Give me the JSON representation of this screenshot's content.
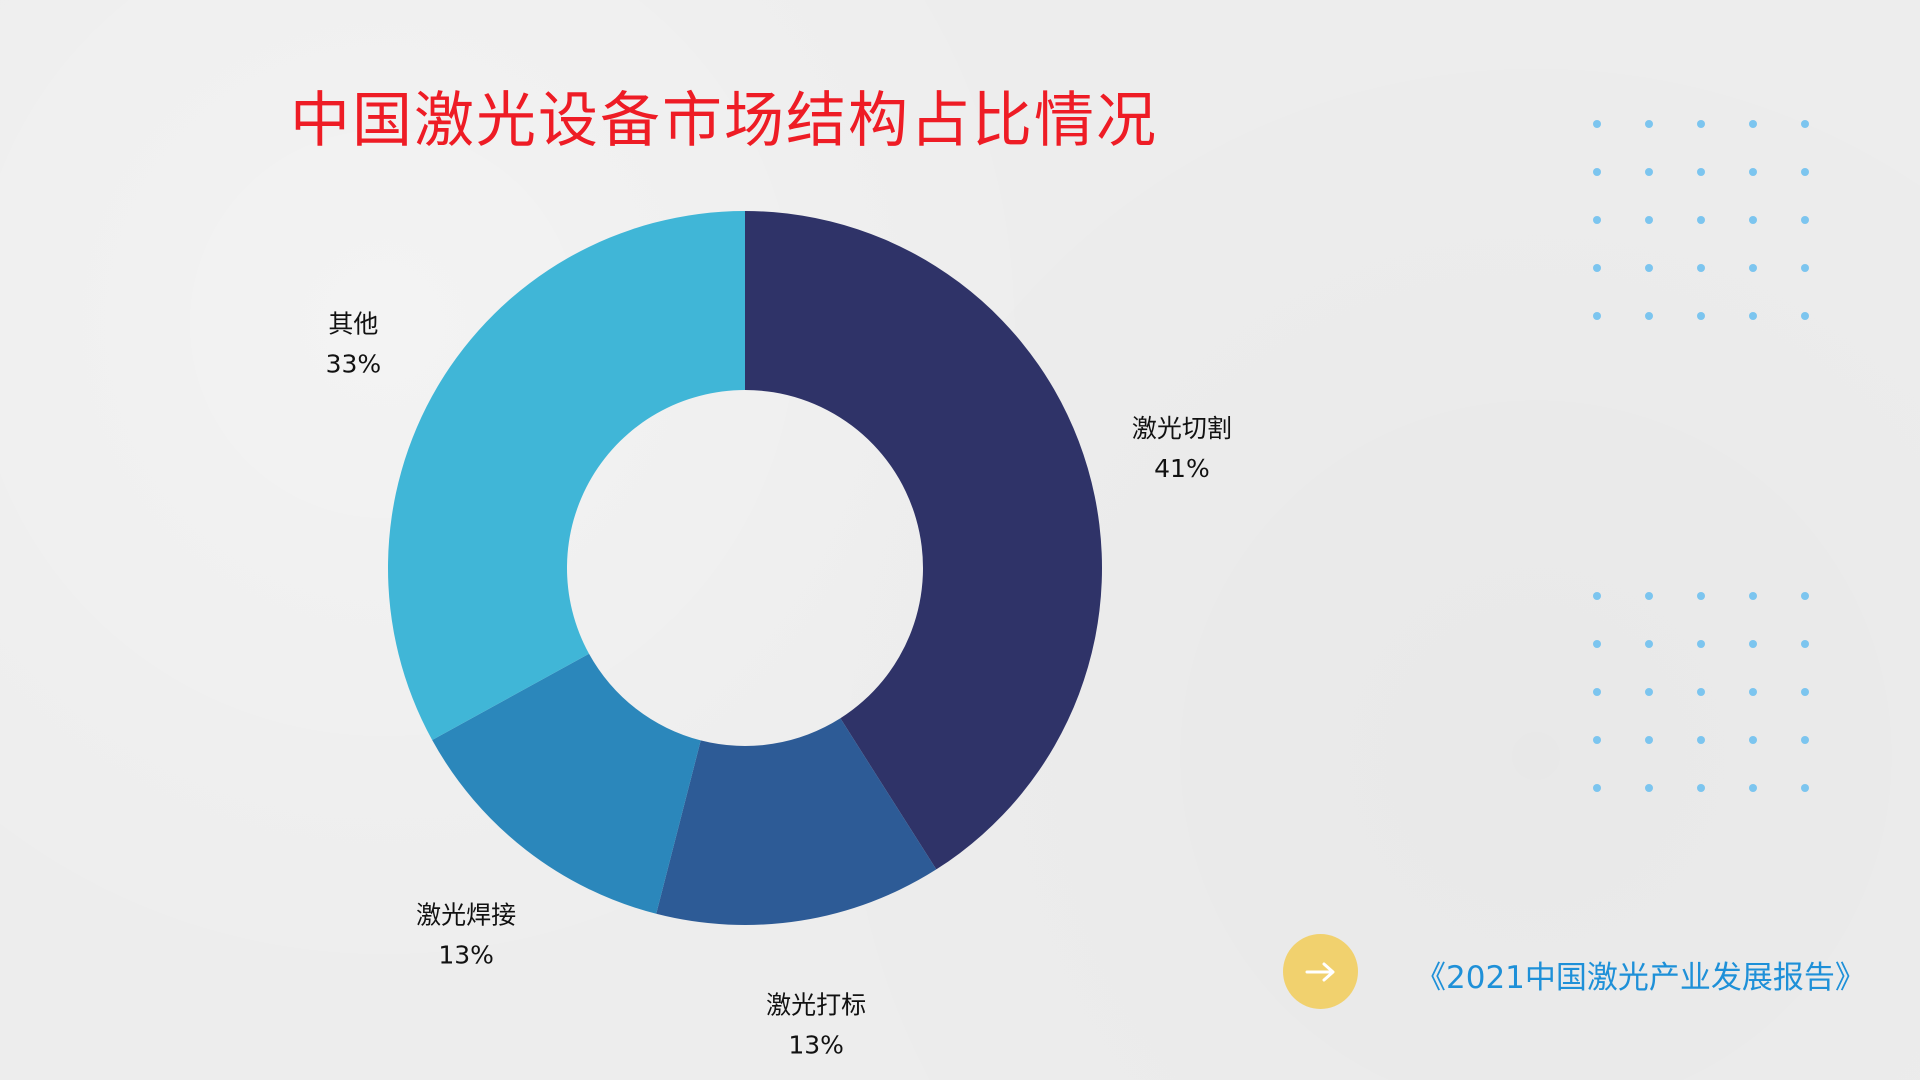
{
  "page": {
    "title": "中国激光设备市场结构占比情况",
    "source": "《2021中国激光产业发展报告》"
  },
  "colors": {
    "title": "#ee1c25",
    "source": "#1e90d8",
    "dots": "#7cc5ef",
    "button": "#f1d16e",
    "arrow": "#ffffff"
  },
  "icons": {
    "next": "arrow-right-icon"
  },
  "chart_data": {
    "type": "pie",
    "donut": true,
    "slices": [
      {
        "label": "激光切割",
        "value": 41,
        "text": "41%",
        "color": "#2f3368"
      },
      {
        "label": "激光打标",
        "value": 13,
        "text": "13%",
        "color": "#2d5b96"
      },
      {
        "label": "激光焊接",
        "value": 13,
        "text": "13%",
        "color": "#2b87bb"
      },
      {
        "label": "其他",
        "value": 33,
        "text": "33%",
        "color": "#40b6d7"
      }
    ],
    "legend": "none",
    "start": "top",
    "direction": "clockwise"
  }
}
